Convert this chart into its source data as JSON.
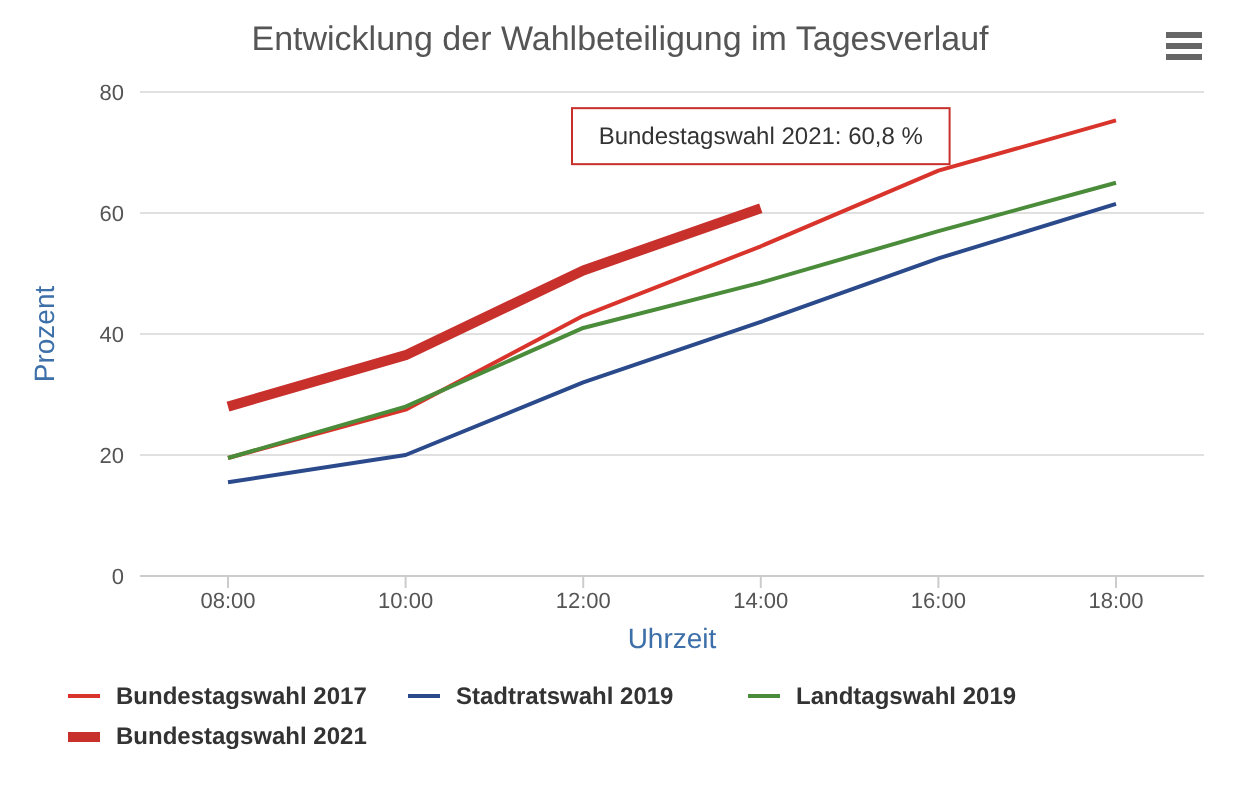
{
  "chart_data": {
    "type": "line",
    "title": "Entwicklung der Wahlbeteiligung im Tagesverlauf",
    "xlabel": "Uhrzeit",
    "ylabel": "Prozent",
    "categories": [
      "08:00",
      "10:00",
      "12:00",
      "14:00",
      "16:00",
      "18:00"
    ],
    "series": [
      {
        "name": "Bundestagswahl 2017",
        "color": "#d9342b",
        "values": [
          19.5,
          27.5,
          43,
          54.5,
          67,
          75.3
        ]
      },
      {
        "name": "Stadtratswahl 2019",
        "color": "#2b4a8c",
        "values": [
          15.5,
          20,
          32,
          42,
          52.5,
          61.5
        ]
      },
      {
        "name": "Landtagswahl 2019",
        "color": "#4a8c3a",
        "values": [
          19.5,
          28,
          41,
          48.5,
          57,
          65
        ]
      },
      {
        "name": "Bundestagswahl 2021",
        "color": "#c8302c",
        "values": [
          28,
          36.5,
          50.5,
          60.8,
          null,
          null
        ]
      }
    ],
    "ylim": [
      0,
      80
    ],
    "yticks": [
      0,
      20,
      40,
      60,
      80
    ],
    "grid": "y",
    "legend": "bottom",
    "marker": "none",
    "line_style": "solid",
    "annotations": [
      {
        "text": "Bundestagswahl 2021: 60,8 %",
        "x": "14:00",
        "y": 60.8
      }
    ]
  }
}
